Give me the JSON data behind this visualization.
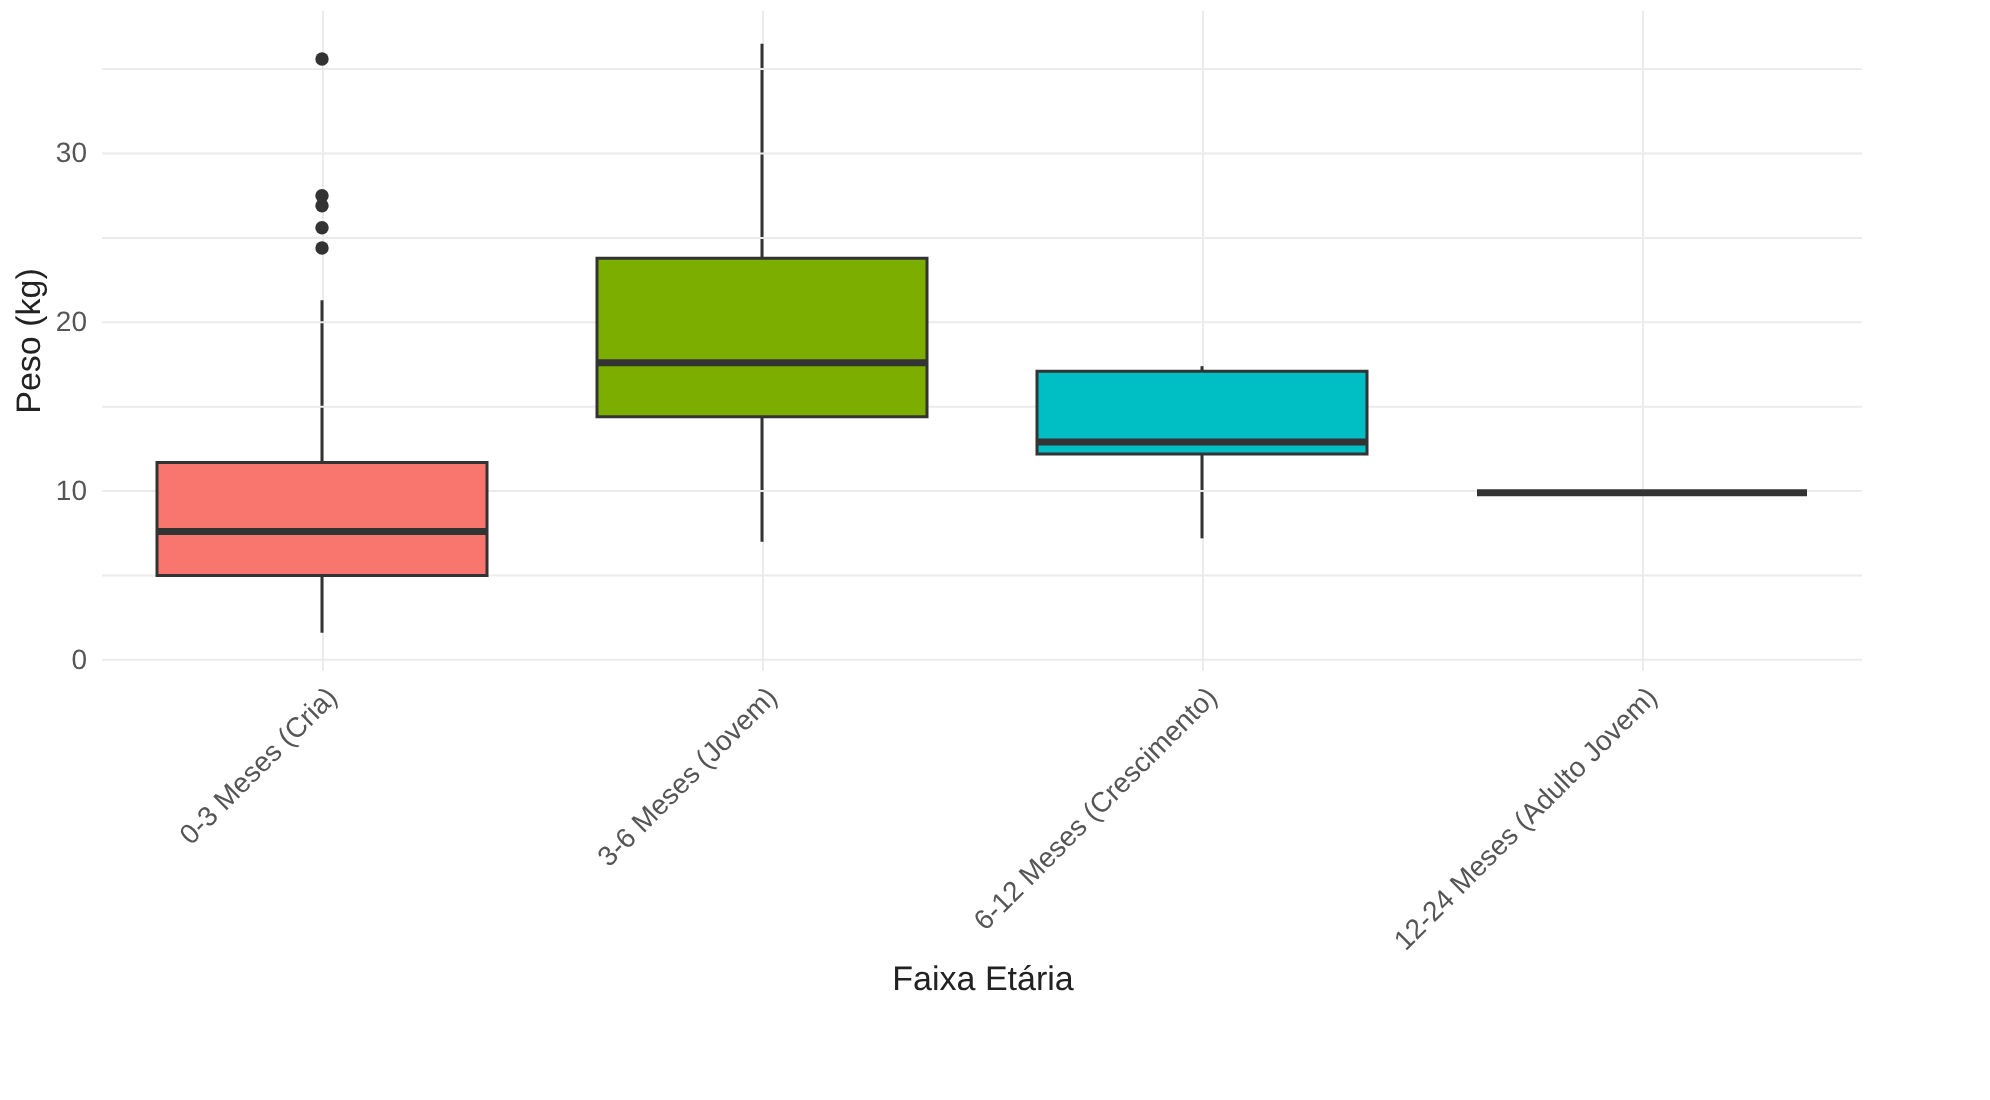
{
  "chart_data": {
    "type": "box",
    "xlabel": "Faixa Etária",
    "ylabel": "Peso (kg)",
    "categories": [
      "0-3 Meses (Cria)",
      "3-6 Meses (Jovem)",
      "6-12 Meses (Crescimento)",
      "12-24 Meses (Adulto Jovem)"
    ],
    "colors": [
      "#f8766d",
      "#7cae00",
      "#00bfc4",
      "#333333"
    ],
    "boxes": [
      {
        "low": 1.6,
        "q1": 5.0,
        "median": 7.6,
        "q3": 11.7,
        "high": 21.3,
        "outliers": [
          24.4,
          25.6,
          26.9,
          27.5,
          35.6
        ]
      },
      {
        "low": 7.0,
        "q1": 14.4,
        "median": 17.6,
        "q3": 23.8,
        "high": 36.5
      },
      {
        "low": 7.2,
        "q1": 12.2,
        "median": 12.9,
        "q3": 17.1,
        "high": 17.4
      },
      {
        "low": 9.9,
        "q1": 9.9,
        "median": 9.9,
        "q3": 9.9,
        "high": 9.9
      }
    ],
    "ylim": [
      -0.6,
      38.5
    ],
    "yticks": [
      0,
      {
        "value": 5,
        "label": null
      },
      10,
      {
        "value": 15,
        "label": null
      },
      20,
      {
        "value": 25,
        "label": null
      },
      30,
      {
        "value": 35,
        "label": null
      }
    ],
    "grid": true,
    "legend": false
  }
}
